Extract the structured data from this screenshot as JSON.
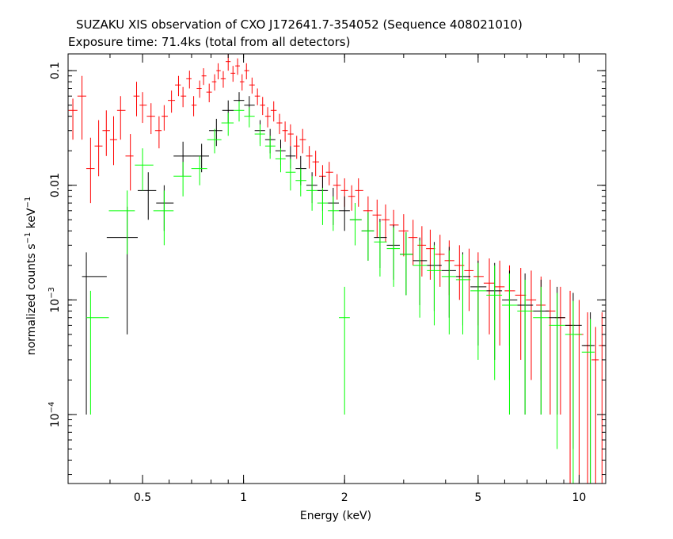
{
  "chart_data": {
    "type": "scatter",
    "title": "SUZAKU XIS observation of CXO J172641.7-354052 (Sequence 408021010)",
    "subtitle": "Exposure time: 71.4ks (total from all detectors)",
    "xlabel": "Energy (keV)",
    "ylabel": {
      "base": "normalized counts s",
      "sup1": "−1",
      "mid": " keV",
      "sup2": "−1"
    },
    "x_scale": "log",
    "y_scale": "log",
    "xlim": [
      0.3,
      12
    ],
    "ylim": [
      2.5e-05,
      0.14
    ],
    "x_ticks": [
      {
        "v": 0.5,
        "label": "0.5"
      },
      {
        "v": 1,
        "label": "1"
      },
      {
        "v": 2,
        "label": "2"
      },
      {
        "v": 5,
        "label": "5"
      },
      {
        "v": 10,
        "label": "10"
      }
    ],
    "y_ticks": [
      {
        "v": 0.1,
        "label": "0.1"
      },
      {
        "v": 0.01,
        "label": "0.01"
      },
      {
        "v": 0.001,
        "base": "10",
        "exp": "−3"
      },
      {
        "v": 0.0001,
        "base": "10",
        "exp": "−4"
      }
    ],
    "grid": false,
    "legend": "none",
    "series": [
      {
        "color": "#ff0000",
        "points": [
          [
            0.31,
            0.045,
            0.02,
            0.012
          ],
          [
            0.33,
            0.06,
            0.035,
            0.03
          ],
          [
            0.35,
            0.014,
            0.007,
            0.012
          ],
          [
            0.37,
            0.022,
            0.01,
            0.015
          ],
          [
            0.39,
            0.03,
            0.012,
            0.015
          ],
          [
            0.41,
            0.025,
            0.01,
            0.015
          ],
          [
            0.43,
            0.045,
            0.02,
            0.015
          ],
          [
            0.46,
            0.018,
            0.009,
            0.01
          ],
          [
            0.48,
            0.06,
            0.02,
            0.02
          ],
          [
            0.5,
            0.05,
            0.015,
            0.015
          ],
          [
            0.53,
            0.04,
            0.012,
            0.012
          ],
          [
            0.56,
            0.03,
            0.009,
            0.01
          ],
          [
            0.58,
            0.04,
            0.01,
            0.01
          ],
          [
            0.61,
            0.055,
            0.012,
            0.012
          ],
          [
            0.64,
            0.075,
            0.015,
            0.015
          ],
          [
            0.66,
            0.06,
            0.012,
            0.012
          ],
          [
            0.69,
            0.085,
            0.015,
            0.015
          ],
          [
            0.71,
            0.05,
            0.01,
            0.01
          ],
          [
            0.74,
            0.07,
            0.012,
            0.012
          ],
          [
            0.76,
            0.09,
            0.015,
            0.015
          ],
          [
            0.79,
            0.065,
            0.012,
            0.012
          ],
          [
            0.82,
            0.08,
            0.013,
            0.013
          ],
          [
            0.84,
            0.1,
            0.016,
            0.016
          ],
          [
            0.87,
            0.085,
            0.014,
            0.014
          ],
          [
            0.9,
            0.12,
            0.02,
            0.02
          ],
          [
            0.93,
            0.095,
            0.015,
            0.015
          ],
          [
            0.96,
            0.11,
            0.018,
            0.018
          ],
          [
            0.99,
            0.08,
            0.013,
            0.013
          ],
          [
            1.02,
            0.1,
            0.016,
            0.016
          ],
          [
            1.06,
            0.075,
            0.012,
            0.012
          ],
          [
            1.1,
            0.06,
            0.01,
            0.01
          ],
          [
            1.14,
            0.05,
            0.009,
            0.009
          ],
          [
            1.18,
            0.04,
            0.008,
            0.008
          ],
          [
            1.23,
            0.045,
            0.009,
            0.009
          ],
          [
            1.28,
            0.035,
            0.007,
            0.007
          ],
          [
            1.33,
            0.03,
            0.006,
            0.006
          ],
          [
            1.38,
            0.028,
            0.006,
            0.006
          ],
          [
            1.44,
            0.022,
            0.005,
            0.005
          ],
          [
            1.5,
            0.025,
            0.006,
            0.006
          ],
          [
            1.57,
            0.018,
            0.004,
            0.004
          ],
          [
            1.64,
            0.016,
            0.004,
            0.004
          ],
          [
            1.72,
            0.012,
            0.003,
            0.003
          ],
          [
            1.8,
            0.013,
            0.003,
            0.003
          ],
          [
            1.9,
            0.01,
            0.0025,
            0.0025
          ],
          [
            2.0,
            0.009,
            0.0025,
            0.0025
          ],
          [
            2.1,
            0.008,
            0.002,
            0.002
          ],
          [
            2.2,
            0.009,
            0.0025,
            0.0025
          ],
          [
            2.35,
            0.006,
            0.002,
            0.002
          ],
          [
            2.5,
            0.0055,
            0.002,
            0.002
          ],
          [
            2.65,
            0.005,
            0.0018,
            0.0018
          ],
          [
            2.8,
            0.0045,
            0.0016,
            0.0016
          ],
          [
            3.0,
            0.004,
            0.0016,
            0.0016
          ],
          [
            3.2,
            0.0035,
            0.0015,
            0.0015
          ],
          [
            3.4,
            0.003,
            0.0014,
            0.0014
          ],
          [
            3.6,
            0.0028,
            0.0013,
            0.0013
          ],
          [
            3.85,
            0.0025,
            0.0012,
            0.0012
          ],
          [
            4.1,
            0.0022,
            0.0011,
            0.0011
          ],
          [
            4.4,
            0.002,
            0.001,
            0.001
          ],
          [
            4.7,
            0.0018,
            0.001,
            0.001
          ],
          [
            5.0,
            0.0016,
            0.001,
            0.001
          ],
          [
            5.4,
            0.0014,
            0.0009,
            0.0009
          ],
          [
            5.8,
            0.0013,
            0.0009,
            0.0009
          ],
          [
            6.2,
            0.0012,
            0.0008,
            0.0008
          ],
          [
            6.7,
            0.0011,
            0.0008,
            0.0008
          ],
          [
            7.2,
            0.001,
            0.0008,
            0.0008
          ],
          [
            7.7,
            0.0009,
            0.0007,
            0.0007
          ],
          [
            8.2,
            0.0008,
            0.0007,
            0.0007
          ],
          [
            8.8,
            0.0007,
            0.0006,
            0.0006
          ],
          [
            9.4,
            0.0006,
            0.0006,
            0.0006
          ],
          [
            10.0,
            0.0005,
            0.0005,
            0.0005
          ],
          [
            10.6,
            0.0004,
            0.00038,
            0.00038
          ],
          [
            11.2,
            0.0003,
            0.00028,
            0.00028
          ],
          [
            11.7,
            0.0004,
            0.00038,
            0.00038
          ]
        ]
      },
      {
        "color": "#000000",
        "points": [
          [
            0.34,
            0.0016,
            0.0015,
            0.001
          ],
          [
            0.45,
            0.0035,
            0.003,
            0.003
          ],
          [
            0.52,
            0.009,
            0.004,
            0.004
          ],
          [
            0.58,
            0.007,
            0.003,
            0.003
          ],
          [
            0.66,
            0.018,
            0.006,
            0.006
          ],
          [
            0.75,
            0.018,
            0.005,
            0.005
          ],
          [
            0.83,
            0.03,
            0.008,
            0.008
          ],
          [
            0.9,
            0.045,
            0.01,
            0.01
          ],
          [
            0.97,
            0.055,
            0.01,
            0.01
          ],
          [
            1.04,
            0.05,
            0.01,
            0.01
          ],
          [
            1.12,
            0.03,
            0.007,
            0.007
          ],
          [
            1.2,
            0.025,
            0.006,
            0.006
          ],
          [
            1.29,
            0.02,
            0.005,
            0.005
          ],
          [
            1.38,
            0.018,
            0.004,
            0.004
          ],
          [
            1.48,
            0.014,
            0.004,
            0.004
          ],
          [
            1.6,
            0.01,
            0.003,
            0.003
          ],
          [
            1.72,
            0.009,
            0.003,
            0.003
          ],
          [
            1.85,
            0.007,
            0.0025,
            0.0025
          ],
          [
            2.0,
            0.006,
            0.002,
            0.002
          ],
          [
            2.15,
            0.005,
            0.002,
            0.002
          ],
          [
            2.35,
            0.004,
            0.0018,
            0.0018
          ],
          [
            2.55,
            0.0035,
            0.0016,
            0.0016
          ],
          [
            2.8,
            0.003,
            0.0015,
            0.0015
          ],
          [
            3.05,
            0.0025,
            0.0014,
            0.0014
          ],
          [
            3.35,
            0.0022,
            0.0013,
            0.0013
          ],
          [
            3.7,
            0.002,
            0.0012,
            0.0012
          ],
          [
            4.1,
            0.0018,
            0.0011,
            0.0011
          ],
          [
            4.5,
            0.0016,
            0.001,
            0.001
          ],
          [
            5.0,
            0.0013,
            0.0009,
            0.0009
          ],
          [
            5.6,
            0.0012,
            0.0009,
            0.0009
          ],
          [
            6.2,
            0.001,
            0.0008,
            0.0008
          ],
          [
            6.9,
            0.0009,
            0.0008,
            0.0008
          ],
          [
            7.7,
            0.0008,
            0.0007,
            0.0007
          ],
          [
            8.6,
            0.0007,
            0.0006,
            0.0006
          ],
          [
            9.6,
            0.0006,
            0.00055,
            0.00055
          ],
          [
            10.8,
            0.0004,
            0.00038,
            0.00038
          ]
        ]
      },
      {
        "color": "#00ff00",
        "points": [
          [
            0.35,
            0.0007,
            0.0006,
            0.0005
          ],
          [
            0.45,
            0.006,
            0.0035,
            0.003
          ],
          [
            0.5,
            0.015,
            0.006,
            0.006
          ],
          [
            0.58,
            0.006,
            0.003,
            0.003
          ],
          [
            0.66,
            0.012,
            0.004,
            0.004
          ],
          [
            0.74,
            0.014,
            0.004,
            0.004
          ],
          [
            0.82,
            0.025,
            0.006,
            0.006
          ],
          [
            0.9,
            0.035,
            0.008,
            0.008
          ],
          [
            0.97,
            0.045,
            0.009,
            0.009
          ],
          [
            1.04,
            0.04,
            0.008,
            0.008
          ],
          [
            1.12,
            0.028,
            0.006,
            0.006
          ],
          [
            1.2,
            0.022,
            0.005,
            0.005
          ],
          [
            1.29,
            0.017,
            0.004,
            0.004
          ],
          [
            1.38,
            0.013,
            0.004,
            0.004
          ],
          [
            1.48,
            0.011,
            0.003,
            0.003
          ],
          [
            1.6,
            0.009,
            0.003,
            0.003
          ],
          [
            1.72,
            0.007,
            0.0025,
            0.0025
          ],
          [
            1.85,
            0.006,
            0.002,
            0.002
          ],
          [
            2.0,
            0.0007,
            0.0006,
            0.0006
          ],
          [
            2.15,
            0.005,
            0.002,
            0.002
          ],
          [
            2.35,
            0.004,
            0.0018,
            0.0018
          ],
          [
            2.55,
            0.0032,
            0.0016,
            0.0016
          ],
          [
            2.8,
            0.0028,
            0.0015,
            0.0015
          ],
          [
            3.05,
            0.0025,
            0.0014,
            0.0014
          ],
          [
            3.35,
            0.002,
            0.0013,
            0.0013
          ],
          [
            3.7,
            0.0018,
            0.0012,
            0.0012
          ],
          [
            4.1,
            0.0016,
            0.0011,
            0.0011
          ],
          [
            4.5,
            0.0015,
            0.001,
            0.001
          ],
          [
            5.0,
            0.0012,
            0.0009,
            0.0009
          ],
          [
            5.6,
            0.0011,
            0.0009,
            0.0009
          ],
          [
            6.2,
            0.0009,
            0.0008,
            0.0008
          ],
          [
            6.9,
            0.0008,
            0.0007,
            0.0007
          ],
          [
            7.7,
            0.0007,
            0.0006,
            0.0006
          ],
          [
            8.6,
            0.0006,
            0.00055,
            0.00055
          ],
          [
            9.6,
            0.0005,
            0.00048,
            0.00048
          ],
          [
            10.8,
            0.00035,
            0.00033,
            0.00033
          ]
        ]
      }
    ]
  }
}
